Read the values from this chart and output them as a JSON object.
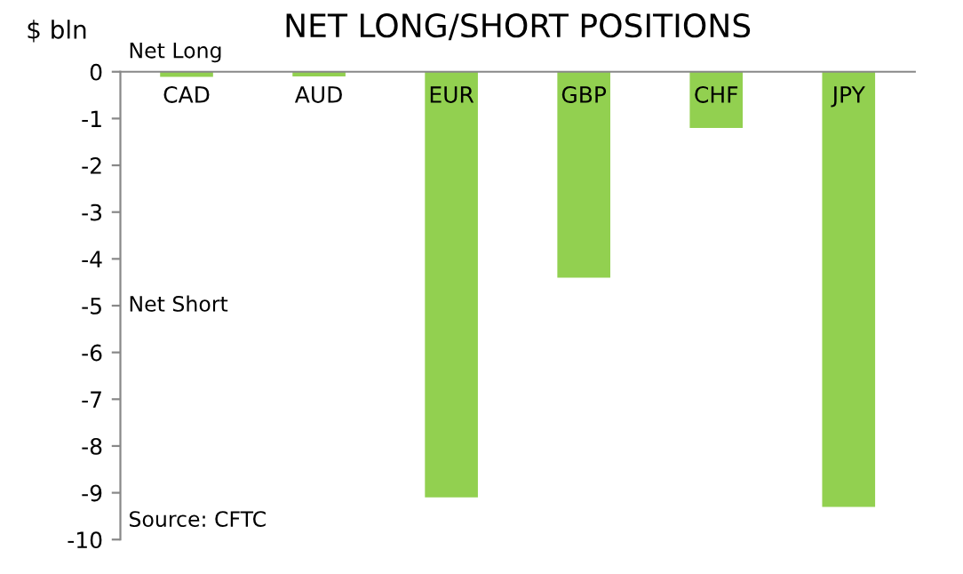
{
  "chart_data": {
    "type": "bar",
    "title": "NET LONG/SHORT POSITIONS",
    "ylabel": "$ bln",
    "categories": [
      "CAD",
      "AUD",
      "EUR",
      "GBP",
      "CHF",
      "JPY"
    ],
    "values": [
      -0.11,
      -0.1,
      -9.1,
      -4.4,
      -1.2,
      -9.3
    ],
    "color": "#92d050",
    "ylim": [
      -10,
      0
    ],
    "yticks": [
      -10,
      -9,
      -8,
      -7,
      -6,
      -5,
      -4,
      -3,
      -2,
      -1,
      0
    ],
    "grid": false,
    "legend": false,
    "annotations": [
      "Net Long",
      "Net Short",
      "Source: CFTC"
    ]
  }
}
